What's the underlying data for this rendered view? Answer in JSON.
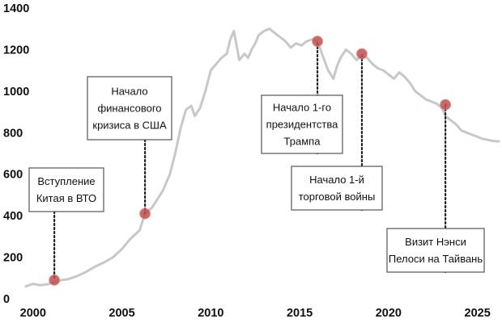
{
  "chart_data": {
    "type": "line",
    "title": "",
    "xlabel": "",
    "ylabel": "",
    "xlim": [
      1999.6,
      2026.2
    ],
    "ylim": [
      0,
      1400
    ],
    "grid": false,
    "legend": "none",
    "x_ticks": [
      "2000",
      "2005",
      "2010",
      "2015",
      "2020",
      "2025"
    ],
    "y_ticks": [
      "0",
      "200",
      "400",
      "600",
      "800",
      "1000",
      "1200",
      "1400"
    ],
    "line_color": "#c8c8c8",
    "marker_color": "#c0504d",
    "series": [
      {
        "x": [
          1999.6,
          2000.0,
          2000.4,
          2000.8,
          2001.2,
          2001.6,
          2002.0,
          2002.5,
          2003.0,
          2003.5,
          2004.0,
          2004.5,
          2005.0,
          2005.5,
          2006.0,
          2006.3,
          2006.7,
          2007.0,
          2007.3,
          2007.7,
          2008.0,
          2008.3,
          2008.6,
          2008.9,
          2009.1,
          2009.4,
          2009.7,
          2010.0,
          2010.3,
          2010.6,
          2010.9,
          2011.1,
          2011.3,
          2011.6,
          2011.9,
          2012.1,
          2012.3,
          2012.5,
          2012.7,
          2013.0,
          2013.3,
          2013.6,
          2013.9,
          2014.2,
          2014.5,
          2014.8,
          2015.1,
          2015.4,
          2015.7,
          2016.0,
          2016.3,
          2016.6,
          2016.9,
          2017.1,
          2017.3,
          2017.6,
          2017.9,
          2018.2,
          2018.5,
          2018.8,
          2019.1,
          2019.4,
          2019.7,
          2020.0,
          2020.3,
          2020.6,
          2020.9,
          2021.2,
          2021.5,
          2021.8,
          2022.1,
          2022.4,
          2022.7,
          2023.0,
          2023.2,
          2023.5,
          2023.8,
          2024.1,
          2024.4,
          2024.7,
          2025.0,
          2025.3,
          2025.6,
          2025.9,
          2026.2
        ],
        "y": [
          60,
          72,
          65,
          70,
          80,
          90,
          95,
          110,
          130,
          155,
          175,
          200,
          240,
          290,
          330,
          410,
          440,
          480,
          520,
          600,
          700,
          820,
          910,
          930,
          880,
          920,
          1000,
          1100,
          1130,
          1160,
          1180,
          1250,
          1290,
          1150,
          1180,
          1160,
          1200,
          1230,
          1270,
          1290,
          1300,
          1280,
          1260,
          1240,
          1210,
          1230,
          1220,
          1240,
          1250,
          1240,
          1170,
          1100,
          1060,
          1120,
          1160,
          1200,
          1180,
          1150,
          1170,
          1160,
          1130,
          1110,
          1100,
          1080,
          1060,
          1090,
          1070,
          1040,
          1000,
          980,
          960,
          950,
          940,
          920,
          880,
          860,
          840,
          810,
          800,
          790,
          780,
          770,
          765,
          760,
          758
        ]
      }
    ],
    "annotations": [
      {
        "x": 2001.2,
        "y": 90,
        "lines": [
          "Вступление",
          "Китая в ВТО"
        ]
      },
      {
        "x": 2006.3,
        "y": 410,
        "lines": [
          "Начало",
          "финансового",
          "кризиса в США"
        ]
      },
      {
        "x": 2016.0,
        "y": 1240,
        "lines": [
          "Начало 1-го",
          "президентства",
          "Трампа"
        ]
      },
      {
        "x": 2018.5,
        "y": 1180,
        "lines": [
          "Начало 1-й",
          "торговой войны"
        ]
      },
      {
        "x": 2023.2,
        "y": 935,
        "lines": [
          "Визит Нэнси",
          "Пелоси на Тайвань"
        ]
      }
    ]
  }
}
